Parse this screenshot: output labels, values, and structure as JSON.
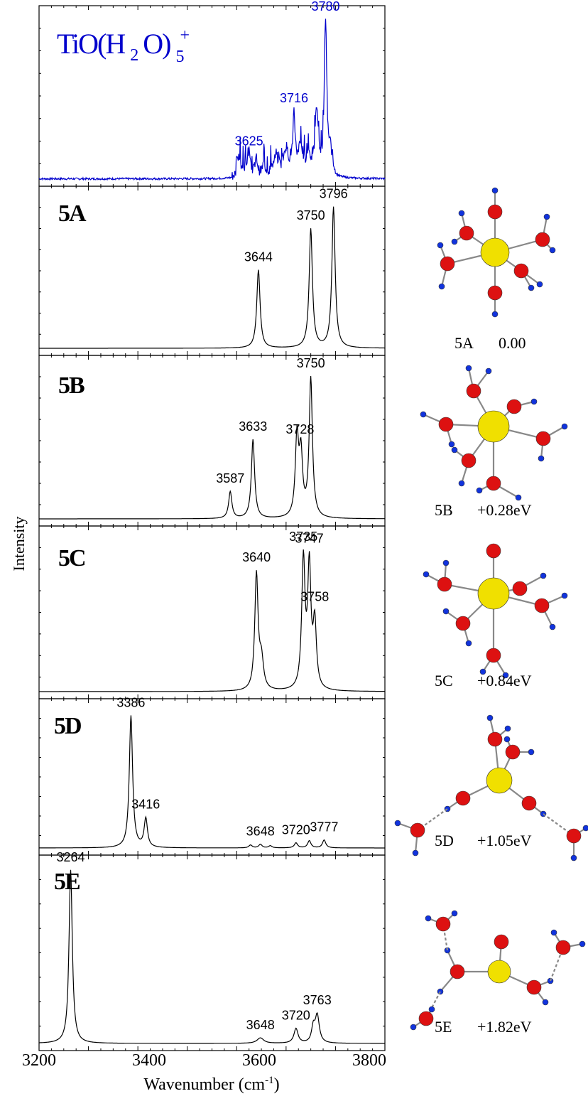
{
  "figure": {
    "xlabel": "Wavenumber (cm",
    "xlabel_sup": "-1",
    "xlabel_tail": ")",
    "ylabel": "Intensity",
    "xlim": [
      3200,
      3900
    ],
    "xticks": [
      "3200",
      "3400",
      "3600",
      "3800"
    ],
    "title_parts": {
      "main": "TiO(H",
      "sub2": "2",
      "mid": "O)",
      "sub5": "5",
      "sup": "+"
    }
  },
  "colors": {
    "experiment": "#0000cc",
    "theory": "#000000",
    "oxygen": "#dd1111",
    "hydrogen": "#1133dd",
    "titanium": "#f0e000"
  },
  "chart_data": {
    "type": "line",
    "panels": [
      {
        "label": "",
        "kind": "experiment",
        "color": "#0000cc",
        "peaks": [
          {
            "x": 3625,
            "label": "3625"
          },
          {
            "x": 3716,
            "label": "3716"
          },
          {
            "x": 3780,
            "label": "3780"
          }
        ]
      },
      {
        "label": "5A",
        "kind": "theory",
        "color": "#000000",
        "peaks": [
          {
            "x": 3644,
            "label": "3644"
          },
          {
            "x": 3750,
            "label": "3750"
          },
          {
            "x": 3796,
            "label": "3796"
          }
        ],
        "structure": {
          "name": "5A",
          "energy": "0.00"
        }
      },
      {
        "label": "5B",
        "kind": "theory",
        "color": "#000000",
        "peaks": [
          {
            "x": 3587,
            "label": "3587"
          },
          {
            "x": 3633,
            "label": "3633"
          },
          {
            "x": 3728,
            "label": "3728"
          },
          {
            "x": 3750,
            "label": "3750"
          }
        ],
        "structure": {
          "name": "5B",
          "energy": "+0.28eV"
        }
      },
      {
        "label": "5C",
        "kind": "theory",
        "color": "#000000",
        "peaks": [
          {
            "x": 3640,
            "label": "3640"
          },
          {
            "x": 3735,
            "label": "3735"
          },
          {
            "x": 3747,
            "label": "3747"
          },
          {
            "x": 3758,
            "label": "3758"
          }
        ],
        "structure": {
          "name": "5C",
          "energy": "+0.84eV"
        }
      },
      {
        "label": "5D",
        "kind": "theory",
        "color": "#000000",
        "peaks": [
          {
            "x": 3386,
            "label": "3386"
          },
          {
            "x": 3416,
            "label": "3416"
          },
          {
            "x": 3648,
            "label": "3648"
          },
          {
            "x": 3720,
            "label": "3720"
          },
          {
            "x": 3777,
            "label": "3777"
          }
        ],
        "structure": {
          "name": "5D",
          "energy": "+1.05eV"
        }
      },
      {
        "label": "5E",
        "kind": "theory",
        "color": "#000000",
        "peaks": [
          {
            "x": 3264,
            "label": "3264"
          },
          {
            "x": 3648,
            "label": "3648"
          },
          {
            "x": 3720,
            "label": "3720"
          },
          {
            "x": 3763,
            "label": "3763"
          }
        ],
        "structure": {
          "name": "5E",
          "energy": "+1.82eV"
        }
      }
    ],
    "spectra": [
      {
        "label": "experiment",
        "lines": [
          {
            "x": 3625,
            "h": 0.14,
            "w": 4
          },
          {
            "x": 3604,
            "h": 0.12,
            "w": 3
          },
          {
            "x": 3640,
            "h": 0.1,
            "w": 3
          },
          {
            "x": 3655,
            "h": 0.07,
            "w": 4
          },
          {
            "x": 3680,
            "h": 0.08,
            "w": 6
          },
          {
            "x": 3700,
            "h": 0.16,
            "w": 6
          },
          {
            "x": 3716,
            "h": 0.36,
            "w": 3
          },
          {
            "x": 3728,
            "h": 0.17,
            "w": 4
          },
          {
            "x": 3745,
            "h": 0.1,
            "w": 5
          },
          {
            "x": 3762,
            "h": 0.4,
            "w": 4
          },
          {
            "x": 3780,
            "h": 0.92,
            "w": 3
          },
          {
            "x": 3790,
            "h": 0.12,
            "w": 3
          }
        ]
      },
      {
        "label": "5A",
        "lines": [
          {
            "x": 3644,
            "h": 0.5,
            "w": 4
          },
          {
            "x": 3750,
            "h": 0.76,
            "w": 4
          },
          {
            "x": 3796,
            "h": 0.9,
            "w": 4
          }
        ]
      },
      {
        "label": "5B",
        "lines": [
          {
            "x": 3587,
            "h": 0.17,
            "w": 4
          },
          {
            "x": 3633,
            "h": 0.5,
            "w": 4
          },
          {
            "x": 3722,
            "h": 0.5,
            "w": 4
          },
          {
            "x": 3730,
            "h": 0.38,
            "w": 4
          },
          {
            "x": 3750,
            "h": 0.88,
            "w": 4
          }
        ]
      },
      {
        "label": "5C",
        "lines": [
          {
            "x": 3640,
            "h": 0.72,
            "w": 4
          },
          {
            "x": 3650,
            "h": 0.18,
            "w": 5
          },
          {
            "x": 3735,
            "h": 0.8,
            "w": 4
          },
          {
            "x": 3747,
            "h": 0.75,
            "w": 4
          },
          {
            "x": 3758,
            "h": 0.4,
            "w": 4
          }
        ]
      },
      {
        "label": "5D",
        "lines": [
          {
            "x": 3386,
            "h": 0.92,
            "w": 4
          },
          {
            "x": 3416,
            "h": 0.2,
            "w": 4
          },
          {
            "x": 3628,
            "h": 0.02,
            "w": 4
          },
          {
            "x": 3648,
            "h": 0.025,
            "w": 4
          },
          {
            "x": 3668,
            "h": 0.015,
            "w": 4
          },
          {
            "x": 3720,
            "h": 0.035,
            "w": 4
          },
          {
            "x": 3747,
            "h": 0.05,
            "w": 4
          },
          {
            "x": 3777,
            "h": 0.055,
            "w": 4
          }
        ]
      },
      {
        "label": "5E",
        "lines": [
          {
            "x": 3264,
            "h": 0.95,
            "w": 4
          },
          {
            "x": 3648,
            "h": 0.03,
            "w": 8
          },
          {
            "x": 3720,
            "h": 0.08,
            "w": 5
          },
          {
            "x": 3755,
            "h": 0.08,
            "w": 4
          },
          {
            "x": 3763,
            "h": 0.15,
            "w": 5
          }
        ]
      }
    ]
  }
}
